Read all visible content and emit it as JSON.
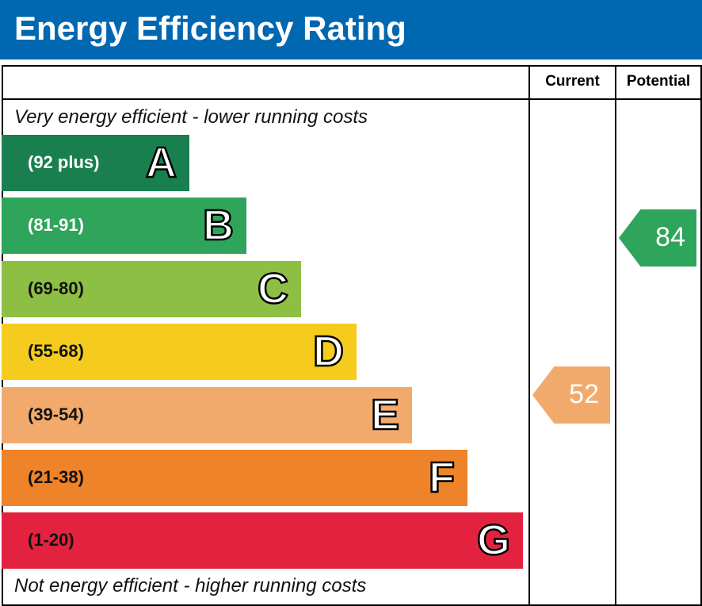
{
  "title": "Energy Efficiency Rating",
  "columns": {
    "current": "Current",
    "potential": "Potential"
  },
  "notes": {
    "top": "Very energy efficient - lower running costs",
    "bottom": "Not energy efficient - higher running costs"
  },
  "chart_data": {
    "type": "bar",
    "bands": [
      {
        "letter": "A",
        "range": "(92 plus)",
        "color": "#1a7f4f"
      },
      {
        "letter": "B",
        "range": "(81-91)",
        "color": "#2ea55a"
      },
      {
        "letter": "C",
        "range": "(69-80)",
        "color": "#8dbf45"
      },
      {
        "letter": "D",
        "range": "(55-68)",
        "color": "#f5cc1d"
      },
      {
        "letter": "E",
        "range": "(39-54)",
        "color": "#f2aa6c"
      },
      {
        "letter": "F",
        "range": "(21-38)",
        "color": "#ee8329"
      },
      {
        "letter": "G",
        "range": "(1-20)",
        "color": "#e3223f"
      }
    ],
    "current": {
      "value": "52",
      "band": "E",
      "color": "#f2aa6c"
    },
    "potential": {
      "value": "84",
      "band": "B",
      "color": "#2ea55a"
    }
  }
}
